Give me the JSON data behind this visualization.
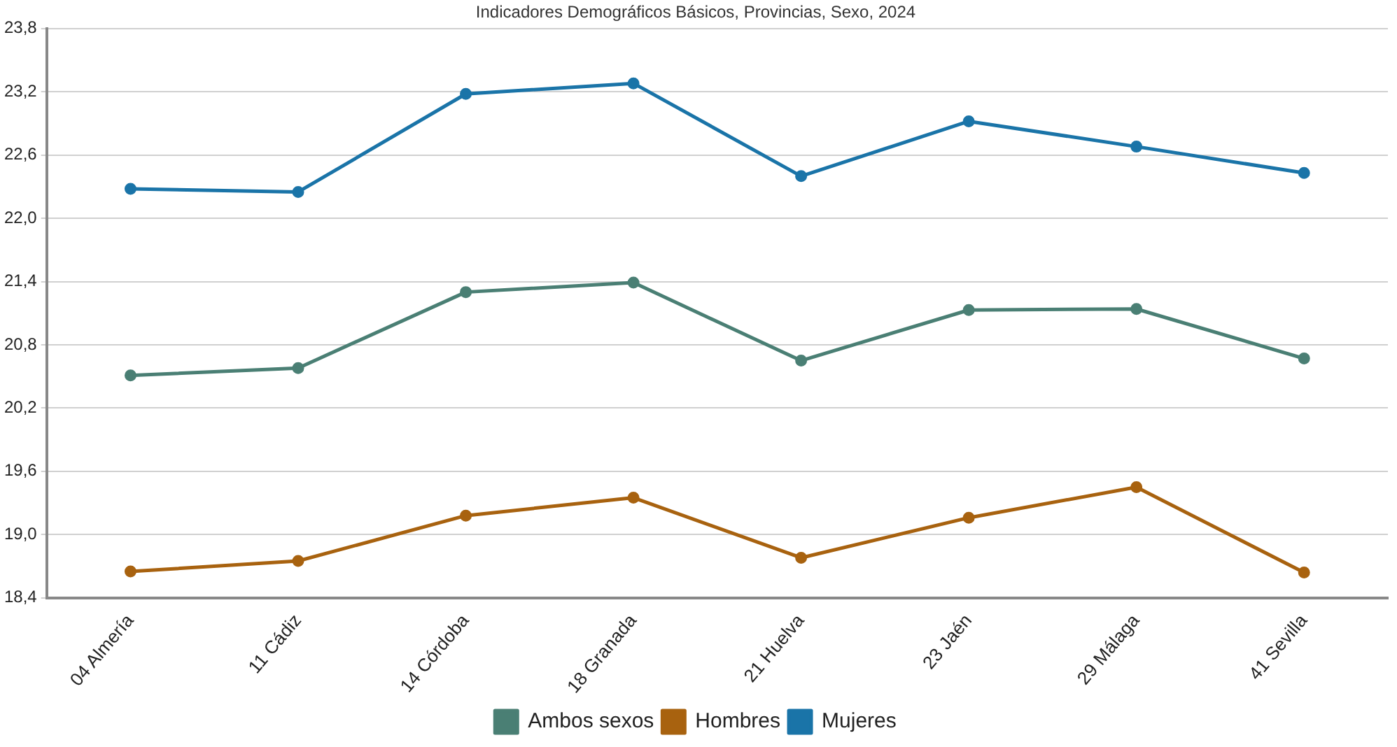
{
  "chart_data": {
    "type": "line",
    "title": "Indicadores Demográficos Básicos, Provincias, Sexo, 2024",
    "categories": [
      "04 Almería",
      "11 Cádiz",
      "14 Córdoba",
      "18 Granada",
      "21 Huelva",
      "23 Jaén",
      "29 Málaga",
      "41 Sevilla"
    ],
    "series": [
      {
        "name": "Ambos sexos",
        "color": "#4a7f74",
        "values": [
          20.51,
          20.58,
          21.3,
          21.39,
          20.65,
          21.13,
          21.14,
          20.67
        ]
      },
      {
        "name": "Hombres",
        "color": "#a8620f",
        "values": [
          18.65,
          18.75,
          19.18,
          19.35,
          18.78,
          19.16,
          19.45,
          18.64
        ]
      },
      {
        "name": "Mujeres",
        "color": "#1a74a8",
        "values": [
          22.28,
          22.25,
          23.18,
          23.28,
          22.4,
          22.92,
          22.68,
          22.43
        ]
      }
    ],
    "ylim": [
      18.4,
      23.8
    ],
    "yticks": [
      {
        "value": 18.4,
        "label": "18,4"
      },
      {
        "value": 19.0,
        "label": "19,0"
      },
      {
        "value": 19.6,
        "label": "19,6"
      },
      {
        "value": 20.2,
        "label": "20,2"
      },
      {
        "value": 20.8,
        "label": "20,8"
      },
      {
        "value": 21.4,
        "label": "21,4"
      },
      {
        "value": 22.0,
        "label": "22,0"
      },
      {
        "value": 22.6,
        "label": "22,6"
      },
      {
        "value": 23.2,
        "label": "23,2"
      },
      {
        "value": 23.8,
        "label": "23,8"
      }
    ],
    "grid": "y",
    "legend": "bottom",
    "marker": "circle",
    "line_style": "solid"
  }
}
